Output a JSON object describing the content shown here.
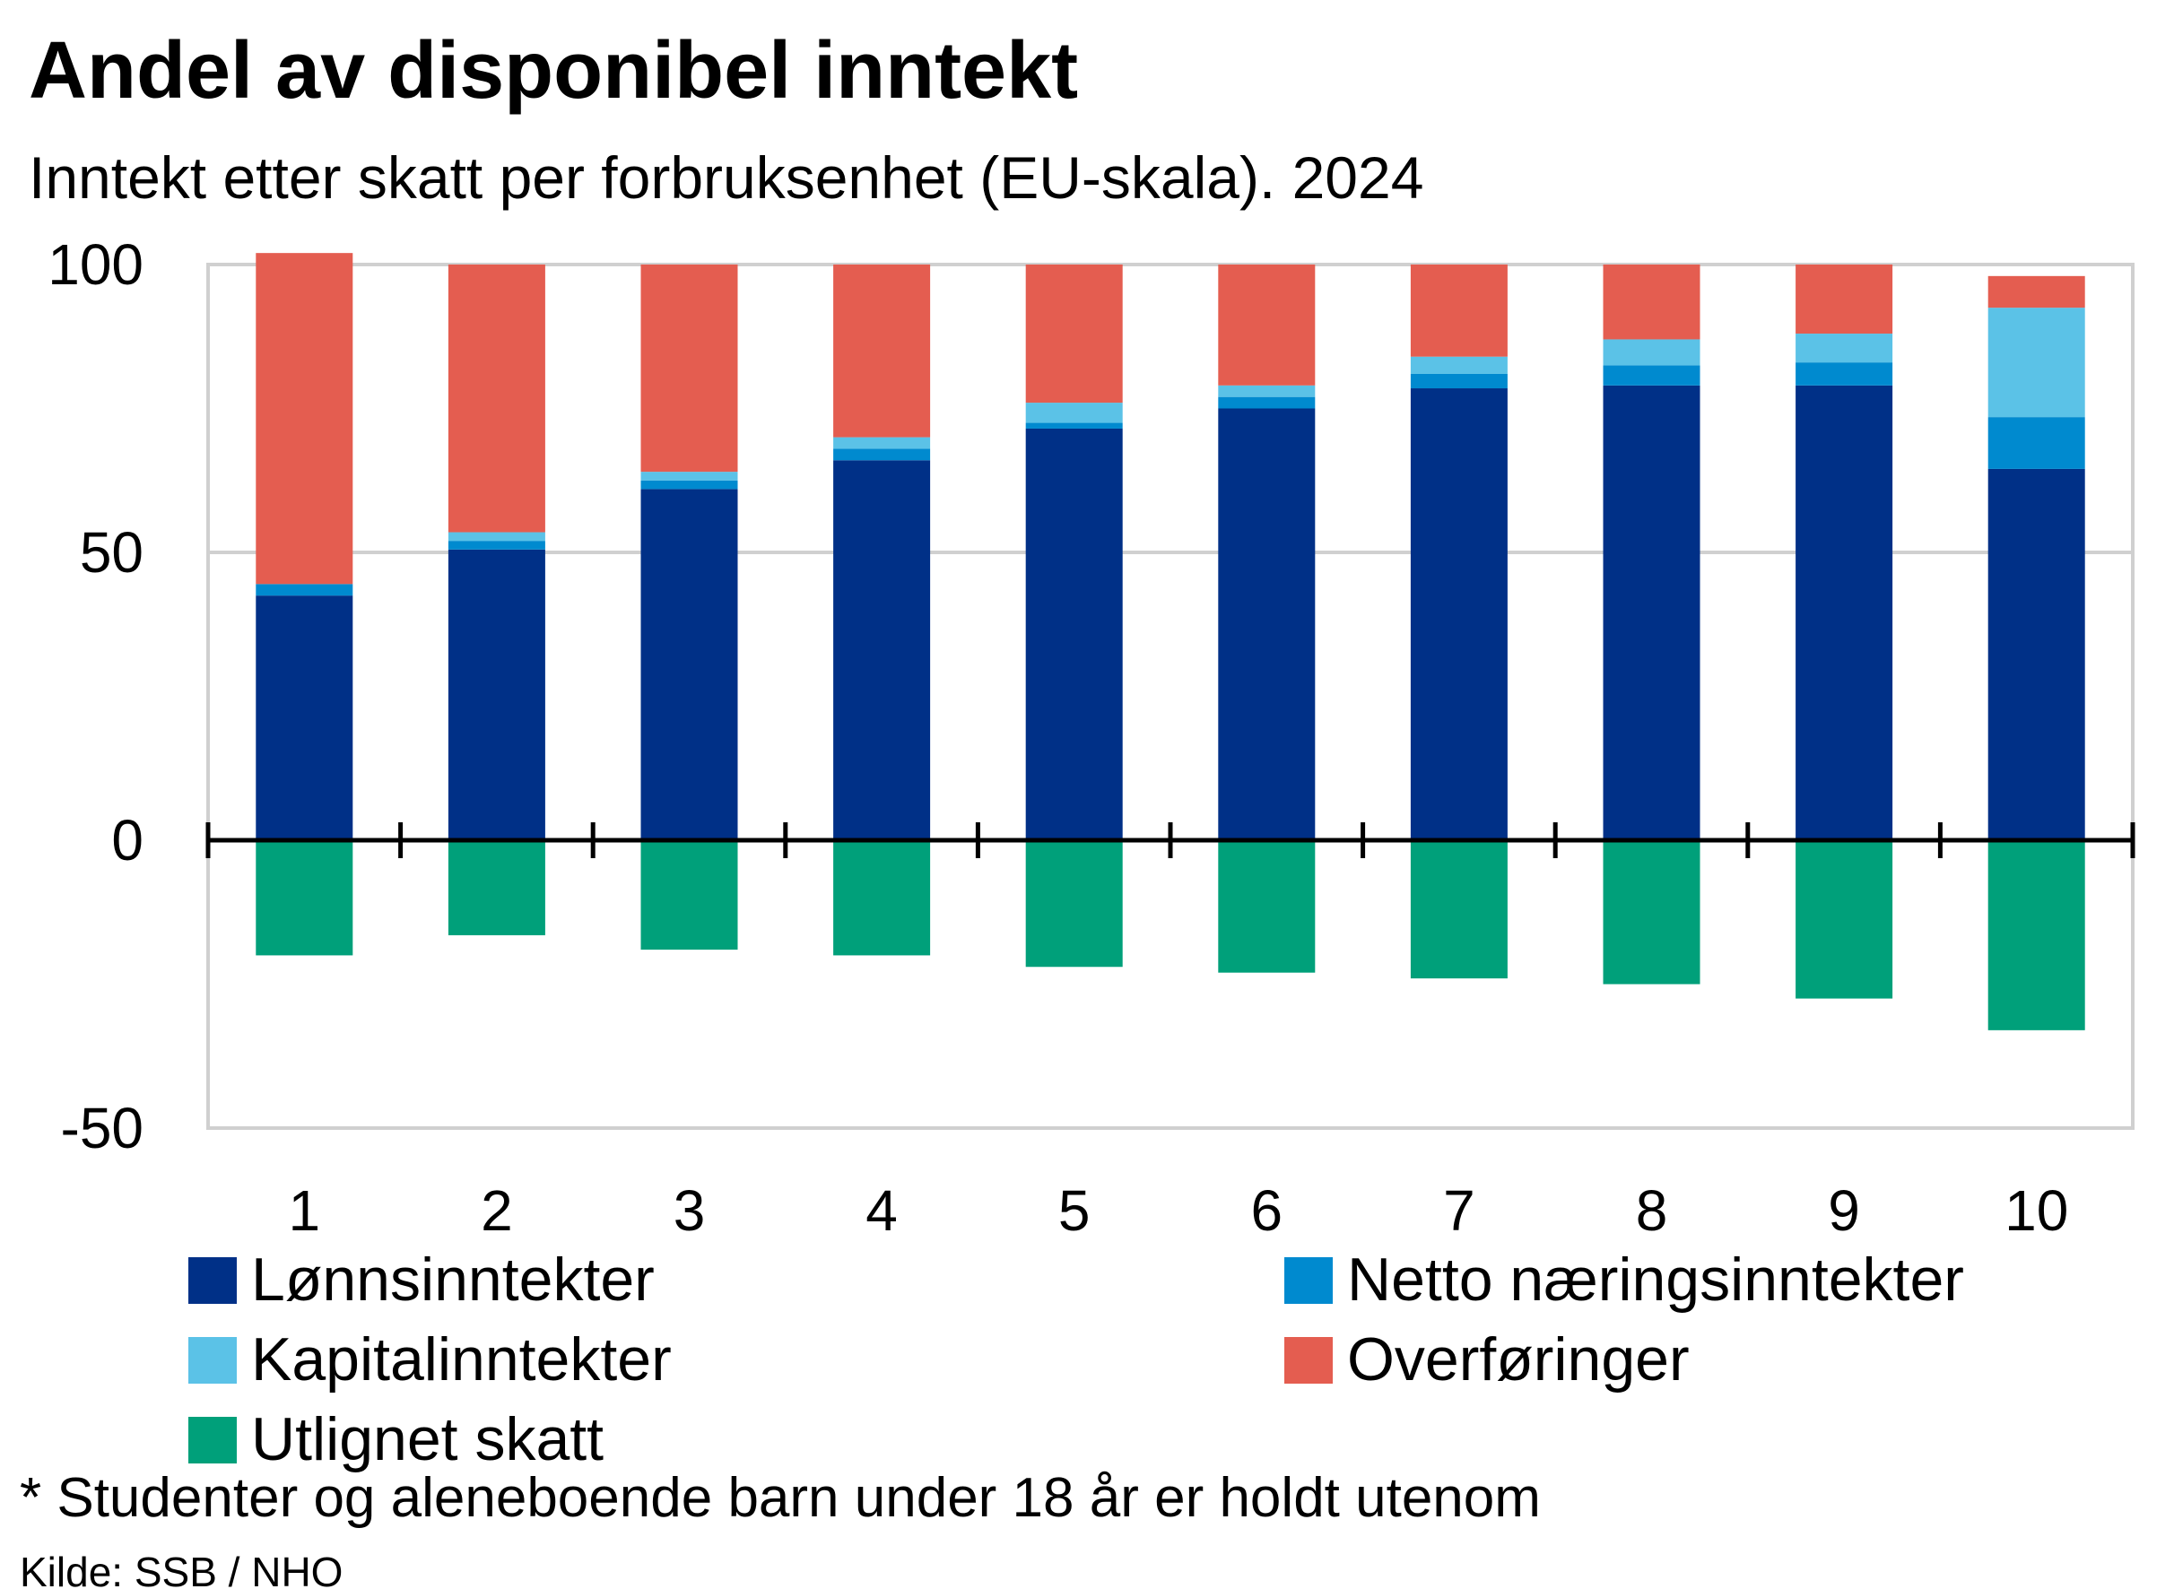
{
  "header": {
    "title": "Andel av disponibel inntekt",
    "subtitle": "Inntekt etter skatt per forbruksenhet (EU-skala). 2024"
  },
  "footer": {
    "note": "* Studenter og aleneboende barn under 18 år er holdt utenom",
    "source": "Kilde: SSB / NHO"
  },
  "chart_data": {
    "type": "bar",
    "stacked": true,
    "title": "",
    "xlabel": "",
    "ylabel": "",
    "ylim": [
      -50,
      100
    ],
    "yticks": [
      100,
      50,
      0,
      -50
    ],
    "grid": true,
    "legend_position": "bottom",
    "categories": [
      "1",
      "2",
      "3",
      "4",
      "5",
      "6",
      "7",
      "8",
      "9",
      "10"
    ],
    "series": [
      {
        "name": "Lønnsinntekter",
        "color": "#003087",
        "values": [
          42.5,
          50.5,
          61,
          66,
          71.5,
          75,
          78.5,
          79,
          79,
          64.5
        ]
      },
      {
        "name": "Netto næringsinntekter",
        "color": "#008ACF",
        "values": [
          2,
          1.5,
          1.5,
          2,
          1,
          2,
          2.5,
          3.5,
          4,
          9
        ]
      },
      {
        "name": "Kapitalinntekter",
        "color": "#5BC2E7",
        "values": [
          0,
          1.5,
          1.5,
          2,
          3.5,
          2,
          3,
          4.5,
          5,
          19
        ]
      },
      {
        "name": "Overføringer",
        "color": "#E45D50",
        "values": [
          57.5,
          46.5,
          36,
          30,
          24,
          21,
          16,
          13,
          12,
          5.5
        ]
      },
      {
        "name": "Utlignet skatt",
        "color": "#00A07A",
        "values": [
          -20,
          -16.5,
          -19,
          -20,
          -22,
          -23,
          -24,
          -25,
          -27.5,
          -33
        ]
      }
    ]
  }
}
